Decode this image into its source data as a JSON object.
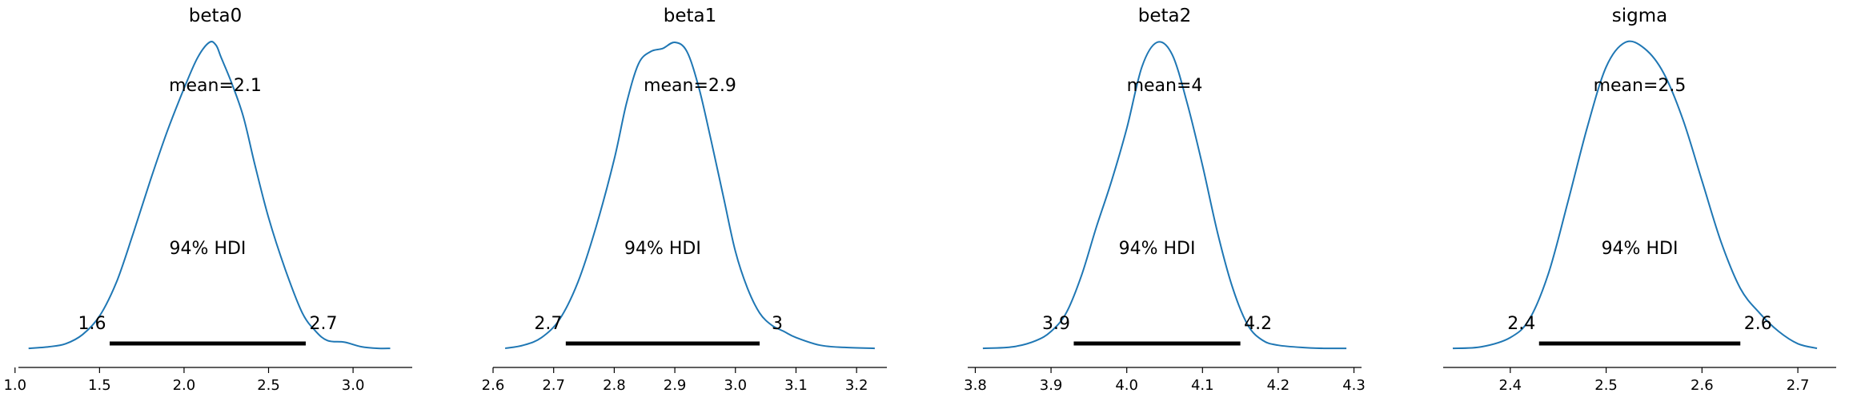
{
  "chart_data": [
    {
      "type": "area",
      "title": "beta0",
      "mean_label": "mean=2.1",
      "hdi_label": "94% HDI",
      "hdi": [
        1.56,
        2.72
      ],
      "hdi_low_label": "1.6",
      "hdi_high_label": "2.7",
      "xlim": [
        1.02,
        3.35
      ],
      "xticks": [
        1.0,
        1.5,
        2.0,
        2.5,
        3.0
      ],
      "xtick_labels": [
        "1.0",
        "1.5",
        "2.0",
        "2.5",
        "3.0"
      ],
      "color": "#1f77b4",
      "x": [
        1.08,
        1.2,
        1.3,
        1.4,
        1.5,
        1.6,
        1.7,
        1.8,
        1.9,
        2.0,
        2.08,
        2.15,
        2.19,
        2.22,
        2.28,
        2.35,
        2.42,
        2.5,
        2.6,
        2.7,
        2.78,
        2.85,
        2.95,
        3.05,
        3.15,
        3.22
      ],
      "y": [
        0.005,
        0.01,
        0.02,
        0.05,
        0.11,
        0.22,
        0.38,
        0.55,
        0.71,
        0.85,
        0.95,
        1.0,
        0.99,
        0.95,
        0.87,
        0.76,
        0.6,
        0.43,
        0.26,
        0.12,
        0.06,
        0.03,
        0.025,
        0.01,
        0.005,
        0.005
      ]
    },
    {
      "type": "area",
      "title": "beta1",
      "mean_label": "mean=2.9",
      "hdi_label": "94% HDI",
      "hdi": [
        2.72,
        3.04
      ],
      "hdi_low_label": "2.7",
      "hdi_high_label": "3",
      "xlim": [
        2.6,
        3.25
      ],
      "xticks": [
        2.6,
        2.7,
        2.8,
        2.9,
        3.0,
        3.1,
        3.2
      ],
      "xtick_labels": [
        "2.6",
        "2.7",
        "2.8",
        "2.9",
        "3.0",
        "3.1",
        "3.2"
      ],
      "color": "#1f77b4",
      "x": [
        2.62,
        2.65,
        2.68,
        2.71,
        2.74,
        2.77,
        2.8,
        2.82,
        2.84,
        2.86,
        2.88,
        2.9,
        2.92,
        2.94,
        2.96,
        2.98,
        3.0,
        3.02,
        3.04,
        3.06,
        3.08,
        3.1,
        3.14,
        3.18,
        3.23
      ],
      "y": [
        0.005,
        0.015,
        0.04,
        0.1,
        0.22,
        0.4,
        0.62,
        0.8,
        0.93,
        0.97,
        0.98,
        1.0,
        0.97,
        0.85,
        0.68,
        0.5,
        0.32,
        0.2,
        0.12,
        0.08,
        0.06,
        0.04,
        0.015,
        0.008,
        0.005
      ]
    },
    {
      "type": "area",
      "title": "beta2",
      "mean_label": "mean=4",
      "hdi_label": "94% HDI",
      "hdi": [
        3.93,
        4.15
      ],
      "hdi_low_label": "3.9",
      "hdi_high_label": "4.2",
      "xlim": [
        3.79,
        4.31
      ],
      "xticks": [
        3.8,
        3.9,
        4.0,
        4.1,
        4.2,
        4.3
      ],
      "xtick_labels": [
        "3.8",
        "3.9",
        "4.0",
        "4.1",
        "4.2",
        "4.3"
      ],
      "color": "#1f77b4",
      "x": [
        3.81,
        3.85,
        3.88,
        3.9,
        3.92,
        3.94,
        3.96,
        3.98,
        4.0,
        4.02,
        4.04,
        4.06,
        4.08,
        4.1,
        4.12,
        4.14,
        4.16,
        4.18,
        4.2,
        4.23,
        4.26,
        4.29
      ],
      "y": [
        0.005,
        0.01,
        0.03,
        0.06,
        0.12,
        0.24,
        0.4,
        0.55,
        0.72,
        0.92,
        1.0,
        0.96,
        0.8,
        0.6,
        0.38,
        0.2,
        0.08,
        0.03,
        0.015,
        0.008,
        0.005,
        0.005
      ]
    },
    {
      "type": "area",
      "title": "sigma",
      "mean_label": "mean=2.5",
      "hdi_label": "94% HDI",
      "hdi": [
        2.43,
        2.64
      ],
      "hdi_low_label": "2.4",
      "hdi_high_label": "2.6",
      "xlim": [
        2.33,
        2.74
      ],
      "xticks": [
        2.4,
        2.5,
        2.6,
        2.7
      ],
      "xtick_labels": [
        "2.4",
        "2.5",
        "2.6",
        "2.7"
      ],
      "color": "#1f77b4",
      "x": [
        2.34,
        2.37,
        2.4,
        2.42,
        2.44,
        2.46,
        2.48,
        2.5,
        2.52,
        2.54,
        2.56,
        2.58,
        2.6,
        2.62,
        2.64,
        2.66,
        2.68,
        2.7,
        2.72
      ],
      "y": [
        0.005,
        0.01,
        0.04,
        0.1,
        0.25,
        0.48,
        0.72,
        0.92,
        1.0,
        0.98,
        0.9,
        0.75,
        0.55,
        0.35,
        0.2,
        0.12,
        0.06,
        0.02,
        0.005
      ]
    }
  ]
}
